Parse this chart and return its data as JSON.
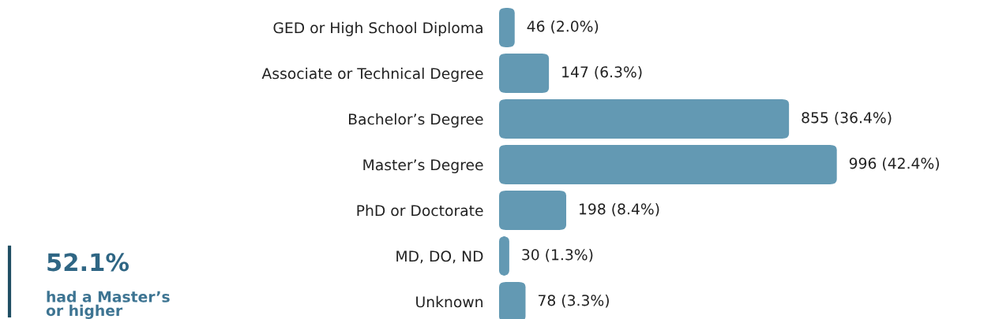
{
  "chart_data": {
    "type": "bar",
    "orientation": "horizontal",
    "categories": [
      "GED or High School Diploma",
      "Associate or Technical Degree",
      "Bachelor’s Degree",
      "Master’s Degree",
      "PhD or Doctorate",
      "MD, DO, ND",
      "Unknown"
    ],
    "values": [
      46,
      147,
      855,
      996,
      198,
      30,
      78
    ],
    "value_labels": [
      "46 (2.0%)",
      "147 (6.3%)",
      "855 (36.4%)",
      "996 (42.4%)",
      "198 (8.4%)",
      "30 (1.3%)",
      "78 (3.3%)"
    ],
    "color": "#6399b3",
    "annotations": [
      "52.1%",
      "had a Master’s\nor higher"
    ],
    "grid": false,
    "legend": false
  }
}
